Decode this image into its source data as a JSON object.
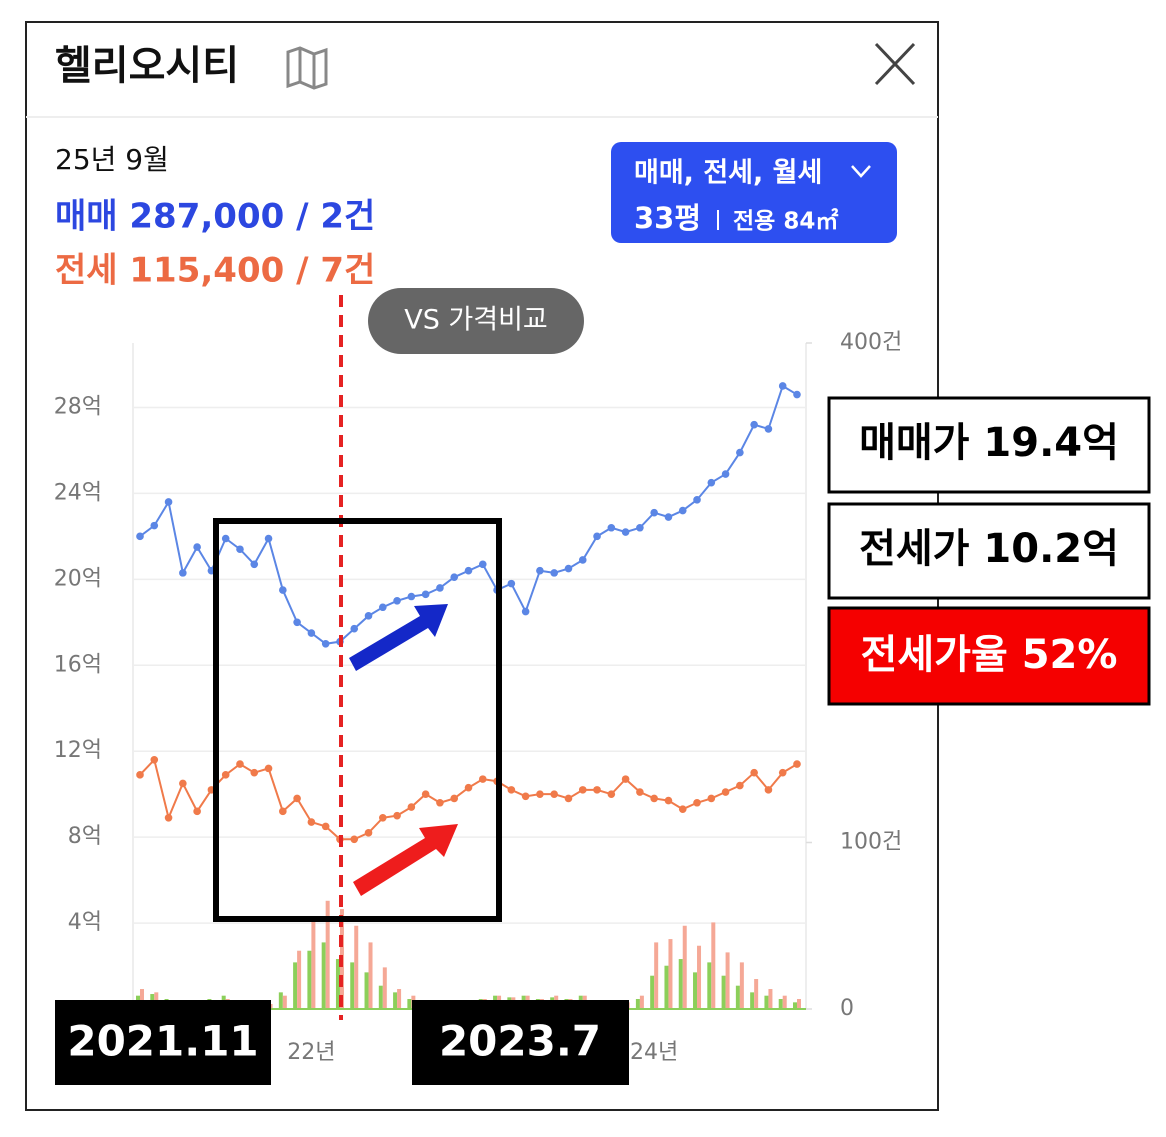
{
  "header": {
    "title": "헬리오시티"
  },
  "summary": {
    "date": "25년 9월",
    "sale": "매매 287,000 / 2건",
    "jeonse": "전세 115,400 / 7건"
  },
  "filter": {
    "types": "매매, 전세, 월세",
    "size": "33평",
    "area": "전용 84㎡"
  },
  "compare_button": "VS 가격비교",
  "chart_data": {
    "type": "line",
    "categories": [
      null,
      null,
      null,
      null,
      null,
      null,
      null,
      null,
      null,
      null,
      null,
      null,
      "22년",
      null,
      null,
      null,
      null,
      null,
      null,
      null,
      null,
      null,
      null,
      null,
      null,
      null,
      null,
      null,
      null,
      null,
      null,
      null,
      null,
      null,
      null,
      null,
      "24년",
      null,
      null,
      null,
      null,
      null,
      null,
      null,
      null,
      null,
      null
    ],
    "ylim": [
      0,
      31
    ],
    "yticks": [
      {
        "value": 4,
        "label": "4억"
      },
      {
        "value": 8,
        "label": "8억"
      },
      {
        "value": 12,
        "label": "12억"
      },
      {
        "value": 16,
        "label": "16억"
      },
      {
        "value": 20,
        "label": "20억"
      },
      {
        "value": 24,
        "label": "24억"
      },
      {
        "value": 28,
        "label": "28억"
      }
    ],
    "y2lim": [
      0,
      400
    ],
    "y2ticks": [
      0,
      {
        "value": 100,
        "label": "100건"
      },
      {
        "value": 400,
        "label": "400건"
      }
    ],
    "grid": true,
    "series": [
      {
        "color": "#5b86e5",
        "values": [
          22.0,
          22.5,
          23.6,
          20.3,
          21.5,
          20.4,
          21.9,
          21.4,
          20.7,
          21.9,
          19.5,
          18.0,
          17.5,
          17.0,
          17.1,
          17.7,
          18.3,
          18.7,
          19.0,
          19.2,
          19.3,
          19.6,
          20.1,
          20.4,
          20.7,
          19.5,
          19.8,
          18.5,
          20.4,
          20.3,
          20.5,
          20.9,
          22.0,
          22.4,
          22.2,
          22.4,
          23.1,
          22.9,
          23.2,
          23.7,
          24.5,
          24.9,
          25.9,
          27.2,
          27.0,
          29.0,
          28.6
        ]
      },
      {
        "color": "#f07a4a",
        "values": [
          10.9,
          11.6,
          8.9,
          10.5,
          9.2,
          10.2,
          10.9,
          11.4,
          11.0,
          11.2,
          9.2,
          9.8,
          8.7,
          8.5,
          7.9,
          7.9,
          8.2,
          8.9,
          9.0,
          9.4,
          10.0,
          9.6,
          9.8,
          10.3,
          10.7,
          10.6,
          10.2,
          9.9,
          10.0,
          10.0,
          9.8,
          10.2,
          10.2,
          10.0,
          10.7,
          10.1,
          9.8,
          9.7,
          9.3,
          9.6,
          9.8,
          10.1,
          10.4,
          11.0,
          10.2,
          11.0,
          11.4
        ]
      },
      {
        "type": "bar",
        "axis": "y2",
        "color": "#8ccf5a",
        "values": [
          8,
          9,
          6,
          5,
          4,
          6,
          8,
          4,
          5,
          4,
          10,
          28,
          35,
          40,
          30,
          28,
          22,
          14,
          10,
          6,
          4,
          5,
          4,
          5,
          6,
          8,
          7,
          8,
          6,
          7,
          6,
          8,
          5,
          4,
          3,
          6,
          20,
          26,
          30,
          22,
          28,
          20,
          14,
          10,
          8,
          6,
          4
        ]
      },
      {
        "type": "bar",
        "axis": "y2",
        "color": "#f5a896",
        "values": [
          12,
          10,
          4,
          4,
          3,
          4,
          6,
          3,
          4,
          3,
          8,
          35,
          55,
          65,
          60,
          50,
          40,
          25,
          12,
          8,
          4,
          4,
          4,
          5,
          6,
          8,
          7,
          8,
          6,
          8,
          6,
          8,
          5,
          4,
          4,
          8,
          40,
          42,
          50,
          38,
          52,
          34,
          28,
          18,
          12,
          8,
          6
        ]
      }
    ]
  },
  "annotations": {
    "start": "2021.11",
    "end": "2023.7",
    "sale_price": "매매가 19.4억",
    "jeonse_price": "전세가 10.2억",
    "ratio": "전세가율 52%"
  }
}
